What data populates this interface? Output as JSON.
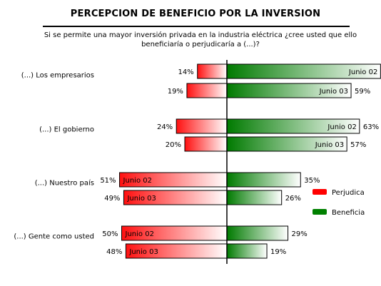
{
  "chart_data": {
    "type": "bar",
    "orientation": "horizontal-diverging",
    "title": "PERCEPCION DE BENEFICIO POR LA INVERSION",
    "subtitle": [
      "Si se permite una mayor inversión privada en la industria eléctrica ¿cree usted que ello",
      "beneficiaría o perjudicaría a (...)?"
    ],
    "categories": [
      "(...) Los empresarios",
      "(...) El gobierno",
      "(...) Nuestro país",
      "(...) Gente como usted"
    ],
    "series": [
      {
        "name": "Perjudica",
        "color": "#ff0000",
        "values": [
          [
            14,
            19
          ],
          [
            24,
            20
          ],
          [
            51,
            49
          ],
          [
            50,
            48
          ]
        ]
      },
      {
        "name": "Beneficia",
        "color": "#008000",
        "values": [
          [
            73,
            59
          ],
          [
            63,
            57
          ],
          [
            35,
            26
          ],
          [
            29,
            19
          ]
        ]
      }
    ],
    "periods": [
      "Junio 02",
      "Junio 03"
    ],
    "period_label_side": [
      [
        "Beneficia",
        "Beneficia"
      ],
      [
        "Beneficia",
        "Beneficia"
      ],
      [
        "Perjudica",
        "Perjudica"
      ],
      [
        "Perjudica",
        "Perjudica"
      ]
    ],
    "value_suffix": "%",
    "legend_position": "right"
  }
}
